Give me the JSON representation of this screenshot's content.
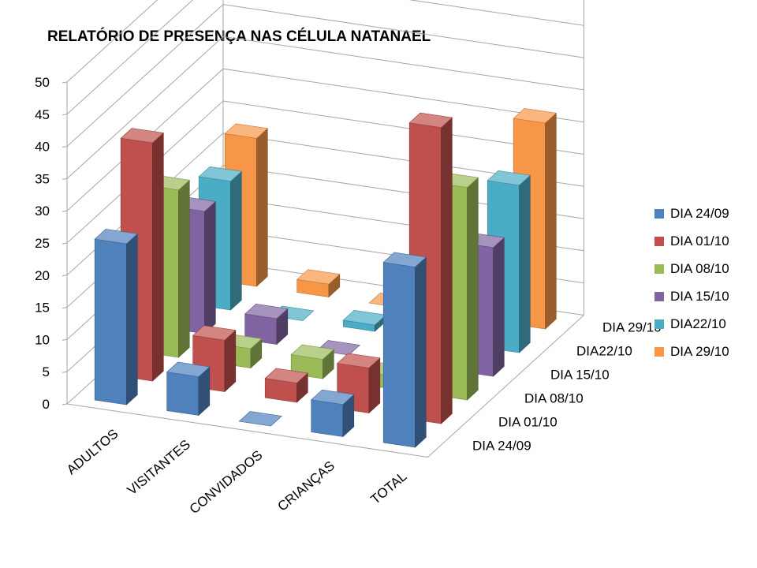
{
  "chart_data": {
    "type": "bar",
    "subtype": "3d-column",
    "title": "RELATÓRIO DE PRESENÇA NAS CÉLULA NATANAEL",
    "categories": [
      "ADULTOS",
      "VISITANTES",
      "CONVIDADOS",
      "CRIANÇAS",
      "TOTAL"
    ],
    "series": [
      {
        "name": "DIA 24/09",
        "depth_label": "DIA 24/09",
        "color": "#4F81BD",
        "values": [
          25,
          6,
          0,
          5,
          28
        ]
      },
      {
        "name": "DIA 01/10",
        "depth_label": "DIA 01/10",
        "color": "#C0504D",
        "values": [
          37,
          8,
          3,
          7,
          46
        ]
      },
      {
        "name": "DIA 08/10",
        "depth_label": "DIA 08/10",
        "color": "#9BBB59",
        "values": [
          26,
          3,
          3,
          2,
          33
        ]
      },
      {
        "name": "DIA 15/10",
        "depth_label": "DIA 15/10",
        "color": "#8064A2",
        "values": [
          19,
          4,
          0,
          0,
          20
        ]
      },
      {
        "name": "DIA22/10",
        "depth_label": "DIA22/10",
        "color": "#4BACC6",
        "values": [
          20,
          0,
          1,
          2,
          26
        ]
      },
      {
        "name": "DIA 29/10",
        "depth_label": "DIA 29/10",
        "color": "#F79646",
        "values": [
          23,
          2,
          0,
          4,
          32
        ]
      }
    ],
    "y_ticks": [
      0,
      5,
      10,
      15,
      20,
      25,
      30,
      35,
      40,
      45,
      50
    ],
    "ylim": [
      0,
      50
    ],
    "xlabel": "",
    "ylabel": "",
    "grid": true,
    "legend_position": "right"
  }
}
